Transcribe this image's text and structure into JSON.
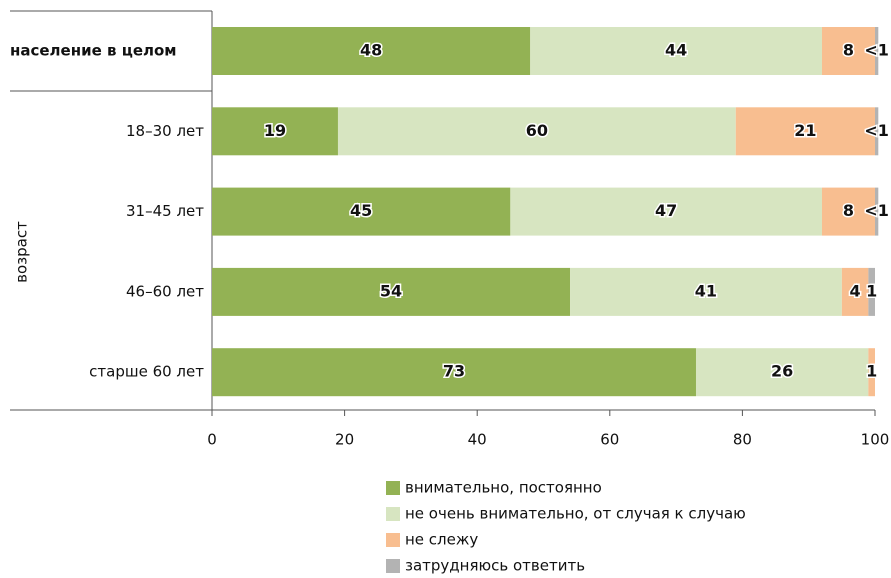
{
  "chart_data": {
    "type": "stacked-bar-horizontal",
    "categories": [
      "население в целом",
      "18–30 лет",
      "31–45 лет",
      "46–60 лет",
      "старше 60 лет"
    ],
    "group_label": "возраст",
    "series": [
      {
        "name": "внимательно, постоянно",
        "color": "#93b254",
        "values": [
          48,
          19,
          45,
          54,
          73
        ]
      },
      {
        "name": "не очень внимательно, от случая к случаю",
        "color": "#d7e5c1",
        "values": [
          44,
          60,
          47,
          41,
          26
        ]
      },
      {
        "name": "не слежу",
        "color": "#f8be90",
        "values": [
          8,
          21,
          8,
          4,
          1
        ]
      },
      {
        "name": "затрудняюсь ответить",
        "color": "#b3b3b3",
        "values": [
          0.5,
          0.5,
          0.5,
          1,
          0
        ],
        "value_labels": [
          "<1",
          "<1",
          "<1",
          "1",
          null
        ]
      }
    ],
    "xlim": [
      0,
      100
    ],
    "xticks": [
      0,
      20,
      40,
      60,
      80,
      100
    ]
  }
}
